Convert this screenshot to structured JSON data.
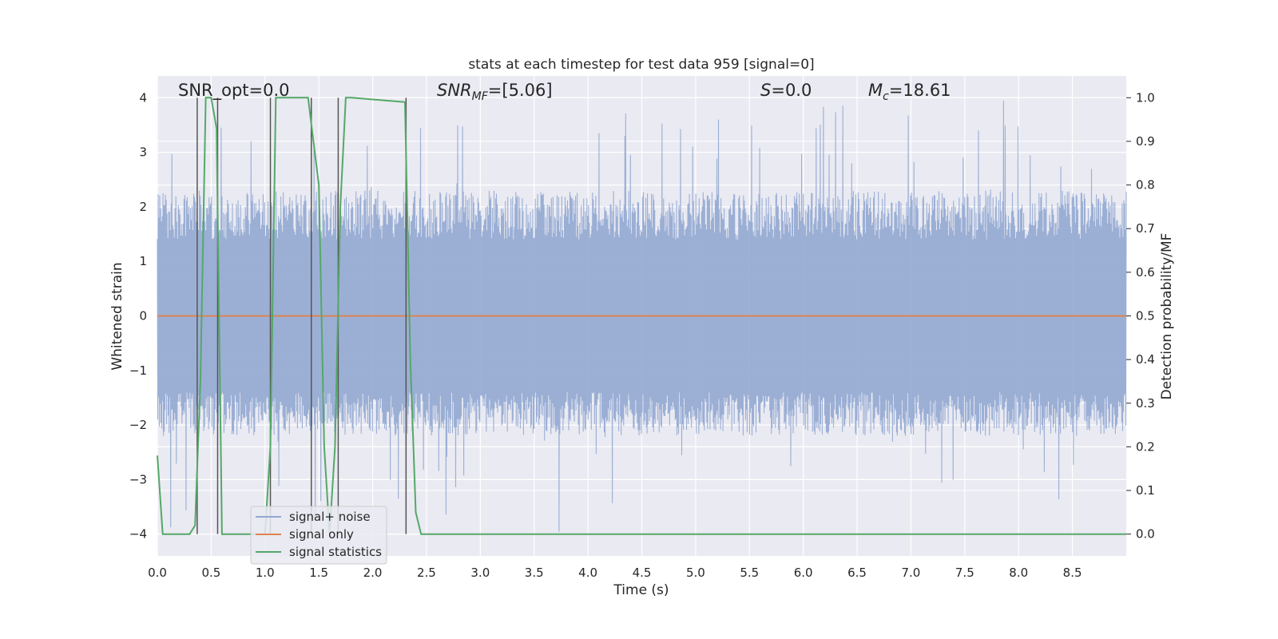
{
  "chart_data": {
    "type": "line",
    "title": "stats at each timestep for test data 959 [signal=0]",
    "xlabel": "Time (s)",
    "ylabel": "Whitened strain",
    "ylabel_right": "Detection probability/MF",
    "xlim": [
      0.0,
      9.0
    ],
    "ylim": [
      -4.4,
      4.4
    ],
    "ylim_right": [
      -0.05,
      1.05
    ],
    "xticks": [
      "0.0",
      "0.5",
      "1.0",
      "1.5",
      "2.0",
      "2.5",
      "3.0",
      "3.5",
      "4.0",
      "4.5",
      "5.0",
      "5.5",
      "6.0",
      "6.5",
      "7.0",
      "7.5",
      "8.0",
      "8.5"
    ],
    "yticks": [
      "4",
      "3",
      "2",
      "1",
      "0",
      "−1",
      "−2",
      "−3",
      "−4"
    ],
    "yticks_right": [
      "1.0",
      "0.9",
      "0.8",
      "0.7",
      "0.6",
      "0.5",
      "0.4",
      "0.3",
      "0.2",
      "0.1",
      "0.0"
    ],
    "grid": true,
    "legend_position": "lower-left",
    "annotations": {
      "snr_opt": "SNR_opt=0.0",
      "snr_mf": "SNR",
      "snr_mf_sub": "MF",
      "snr_mf_val": "=[5.06]",
      "s": "S",
      "s_val": "=0.0",
      "mc": "M",
      "mc_sub": "c",
      "mc_val": "=18.61"
    },
    "series": [
      {
        "name": "signal+ noise",
        "color": "#92a8d1",
        "noise_envelope": {
          "typical_max": 2.3,
          "peak_max": 3.95,
          "typical_min": -2.2,
          "peak_min": -4.05
        }
      },
      {
        "name": "signal only",
        "color": "#dd8452",
        "x": [
          0.0,
          9.0
        ],
        "y": [
          0.0,
          0.0
        ]
      },
      {
        "name": "signal statistics",
        "color": "#55a868",
        "axis": "right",
        "x": [
          0.0,
          0.05,
          0.1,
          0.3,
          0.35,
          0.4,
          0.45,
          0.5,
          0.55,
          0.6,
          0.65,
          0.9,
          1.0,
          1.05,
          1.1,
          1.15,
          1.2,
          1.4,
          1.45,
          1.5,
          1.55,
          1.6,
          1.65,
          1.7,
          1.75,
          1.8,
          2.3,
          2.35,
          2.4,
          2.45,
          9.0
        ],
        "y": [
          0.18,
          0.0,
          0.0,
          0.0,
          0.02,
          0.35,
          1.0,
          1.0,
          0.93,
          0.0,
          0.0,
          0.0,
          0.0,
          0.2,
          1.0,
          1.0,
          1.0,
          1.0,
          0.9,
          0.8,
          0.2,
          0.0,
          0.2,
          0.75,
          1.0,
          1.0,
          0.99,
          0.4,
          0.05,
          0.0,
          0.0
        ]
      }
    ],
    "vertical_markers": [
      0.37,
      0.56,
      1.05,
      1.43,
      1.68,
      2.31
    ]
  }
}
